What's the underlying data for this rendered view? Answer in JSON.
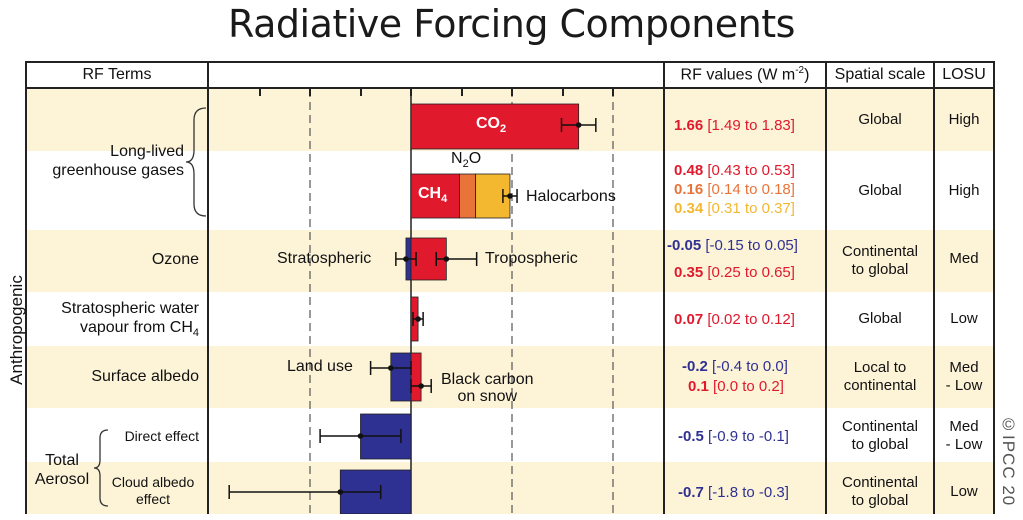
{
  "title": "Radiative Forcing Components",
  "headers": {
    "rf_terms": "RF Terms",
    "rf_values_prefix": "RF values (W m",
    "rf_values_exp": "-2",
    "rf_values_suffix": ")",
    "spatial_scale": "Spatial scale",
    "losu": "LOSU"
  },
  "side_label": "Anthropogenic",
  "watermark": "©IPCC 20",
  "colors": {
    "warming": "#e0192d",
    "cooling": "#2e3192",
    "n2o": "#e8743a",
    "halocarbons": "#f4b830",
    "band": "#fdf4d8"
  },
  "rows": {
    "ghg": {
      "term_line1": "Long-lived",
      "term_line2": "greenhouse gases"
    },
    "ozone": {
      "term": "Ozone"
    },
    "strat_water": {
      "term_line1": "Stratospheric water",
      "term_line2": "vapour from CH",
      "term_sub": "4"
    },
    "albedo": {
      "term": "Surface albedo"
    },
    "aerosol": {
      "term_line1": "Total",
      "term_line2": "Aerosol",
      "direct": "Direct effect",
      "cloud_line1": "Cloud albedo",
      "cloud_line2": "effect"
    }
  },
  "bar_labels": {
    "co2": "CO",
    "co2_sub": "2",
    "ch4": "CH",
    "ch4_sub": "4",
    "n2o": "N",
    "n2o_sub": "2",
    "n2o_tail": "O",
    "halocarbons": "Halocarbons",
    "stratospheric": "Stratospheric",
    "tropospheric": "Tropospheric",
    "land_use": "Land use",
    "black_carbon_line1": "Black carbon",
    "black_carbon_line2": "on snow"
  },
  "values": {
    "co2": {
      "v": "1.66",
      "range": "[1.49 to 1.83]"
    },
    "ch4": {
      "v": "0.48",
      "range": "[0.43 to 0.53]"
    },
    "n2o": {
      "v": "0.16",
      "range": "[0.14 to 0.18]"
    },
    "halo": {
      "v": "0.34",
      "range": "[0.31 to 0.37]"
    },
    "strat_o3": {
      "v": "-0.05",
      "range": "[-0.15 to 0.05]"
    },
    "trop_o3": {
      "v": "0.35",
      "range": "[0.25 to 0.65]"
    },
    "h2o": {
      "v": "0.07",
      "range": "[0.02 to 0.12]"
    },
    "land": {
      "v": "-0.2",
      "range": "[-0.4 to 0.0]"
    },
    "bc": {
      "v": "0.1",
      "range": "[0.0 to 0.2]"
    },
    "direct": {
      "v": "-0.5",
      "range": "[-0.9 to -0.1]"
    },
    "cloud": {
      "v": "-0.7",
      "range": "[-1.8 to -0.3]"
    }
  },
  "scales": {
    "ghg1": "Global",
    "ghg2": "Global",
    "ozone_line1": "Continental",
    "ozone_line2": "to global",
    "h2o": "Global",
    "albedo_line1": "Local to",
    "albedo_line2": "continental",
    "direct_line1": "Continental",
    "direct_line2": "to global",
    "cloud_line1": "Continental",
    "cloud_line2": "to global"
  },
  "losu": {
    "ghg1": "High",
    "ghg2": "High",
    "ozone": "Med",
    "h2o": "Low",
    "albedo_line1": "Med",
    "albedo_line2": "- Low",
    "direct_line1": "Med",
    "direct_line2": "- Low",
    "cloud": "Low"
  },
  "chart_data": {
    "type": "bar",
    "title": "Radiative Forcing Components",
    "xlim": [
      -2,
      2
    ],
    "series": [
      {
        "name": "CO2",
        "value": 1.66,
        "range": [
          1.49,
          1.83
        ]
      },
      {
        "name": "CH4",
        "value": 0.48,
        "range": [
          0.43,
          0.53
        ]
      },
      {
        "name": "N2O",
        "value": 0.16,
        "range": [
          0.14,
          0.18
        ]
      },
      {
        "name": "Halocarbons",
        "value": 0.34,
        "range": [
          0.31,
          0.37
        ]
      },
      {
        "name": "Stratospheric",
        "value": -0.05,
        "range": [
          -0.15,
          0.05
        ]
      },
      {
        "name": "Tropospheric",
        "value": 0.35,
        "range": [
          0.25,
          0.65
        ]
      },
      {
        "name": "Stratospheric water vapour from CH4",
        "value": 0.07,
        "range": [
          0.02,
          0.12
        ]
      },
      {
        "name": "Land use",
        "value": -0.2,
        "range": [
          -0.4,
          0.0
        ]
      },
      {
        "name": "Black carbon on snow",
        "value": 0.1,
        "range": [
          0.0,
          0.2
        ]
      },
      {
        "name": "Direct effect",
        "value": -0.5,
        "range": [
          -0.9,
          -0.1
        ]
      },
      {
        "name": "Cloud albedo effect",
        "value": -0.7,
        "range": [
          -1.8,
          -0.3
        ]
      }
    ]
  }
}
